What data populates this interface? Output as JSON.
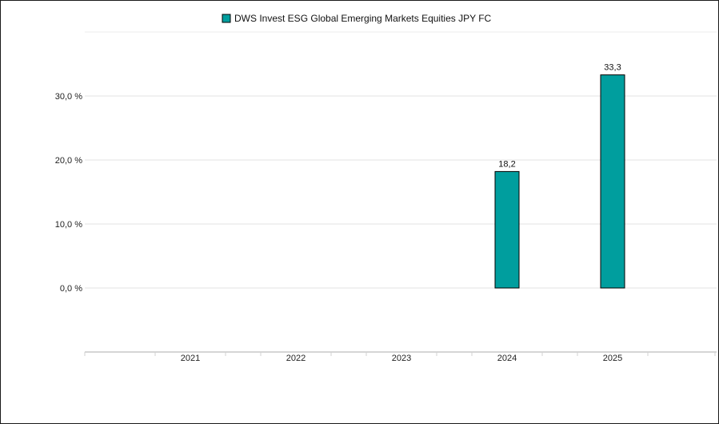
{
  "chart_data": {
    "type": "bar",
    "categories": [
      "2021",
      "2022",
      "2023",
      "2024",
      "2025"
    ],
    "series": [
      {
        "name": "DWS Invest ESG Global Emerging Markets Equities JPY FC",
        "values": [
          null,
          null,
          null,
          18.2,
          33.3
        ],
        "value_labels": [
          "",
          "",
          "",
          "18,2",
          "33,3"
        ],
        "color": "#009e9e"
      }
    ],
    "y_ticks": [
      0,
      10,
      20,
      30
    ],
    "y_tick_labels": [
      "0,0 %",
      "10,0 %",
      "20,0 %",
      "30,0 %"
    ],
    "ylim": [
      -10,
      40
    ],
    "grid": true,
    "legend_position": "top-center"
  }
}
